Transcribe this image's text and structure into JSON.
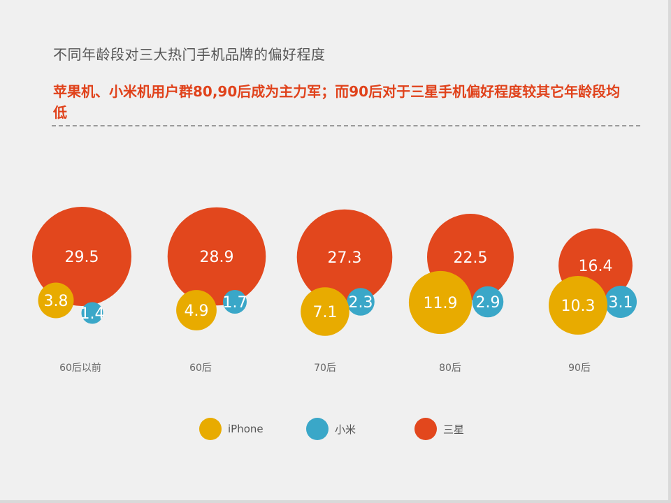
{
  "title": "不同年龄段对三大热门手机品牌的偏好程度",
  "subtitle": "苹果机、小米机用户群80,90后成为主力军；而90后对于三星手机偏好程度较其它年龄段均低",
  "colors": {
    "iphone": "#e8ab00",
    "xiaomi": "#3aa7c8",
    "samsung": "#e2471d",
    "background": "#f0f0f0"
  },
  "chart_data": {
    "type": "bubble",
    "categories": [
      "60后以前",
      "60后",
      "70后",
      "80后",
      "90后"
    ],
    "series": [
      {
        "name": "iPhone",
        "values": [
          3.8,
          4.9,
          7.1,
          11.9,
          10.3
        ]
      },
      {
        "name": "小米",
        "values": [
          1.4,
          1.7,
          2.3,
          2.9,
          3.1
        ]
      },
      {
        "name": "三星",
        "values": [
          29.5,
          28.9,
          27.3,
          22.5,
          16.4
        ]
      }
    ],
    "legend_placement": "bottom"
  },
  "legend": [
    {
      "label": "iPhone",
      "color": "#e8ab00"
    },
    {
      "label": "小米",
      "color": "#3aa7c8"
    },
    {
      "label": "三星",
      "color": "#e2471d"
    }
  ]
}
